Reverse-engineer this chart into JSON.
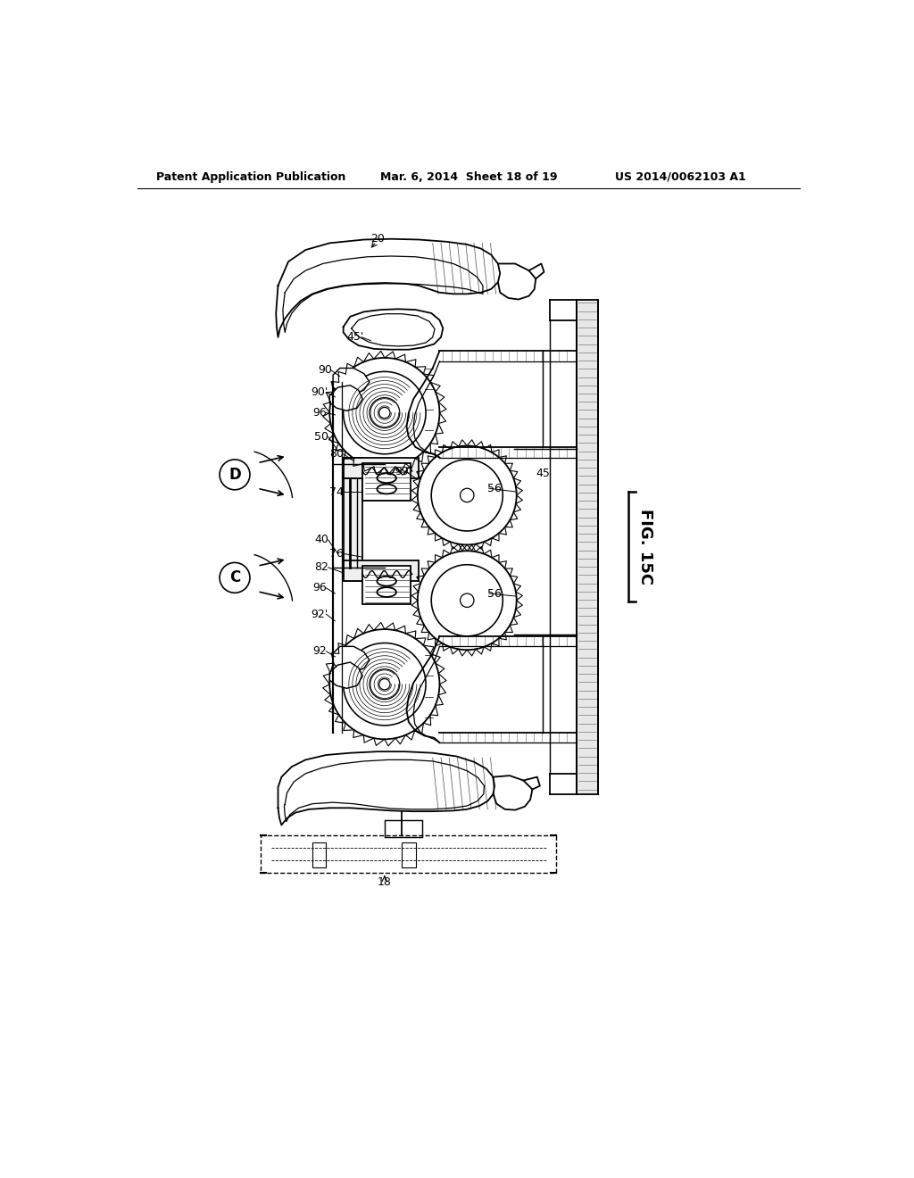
{
  "background_color": "#ffffff",
  "header_left": "Patent Application Publication",
  "header_mid": "Mar. 6, 2014  Sheet 18 of 19",
  "header_right": "US 2014/0062103 A1",
  "figure_label": "FIG. 15C",
  "lw": 1.3
}
